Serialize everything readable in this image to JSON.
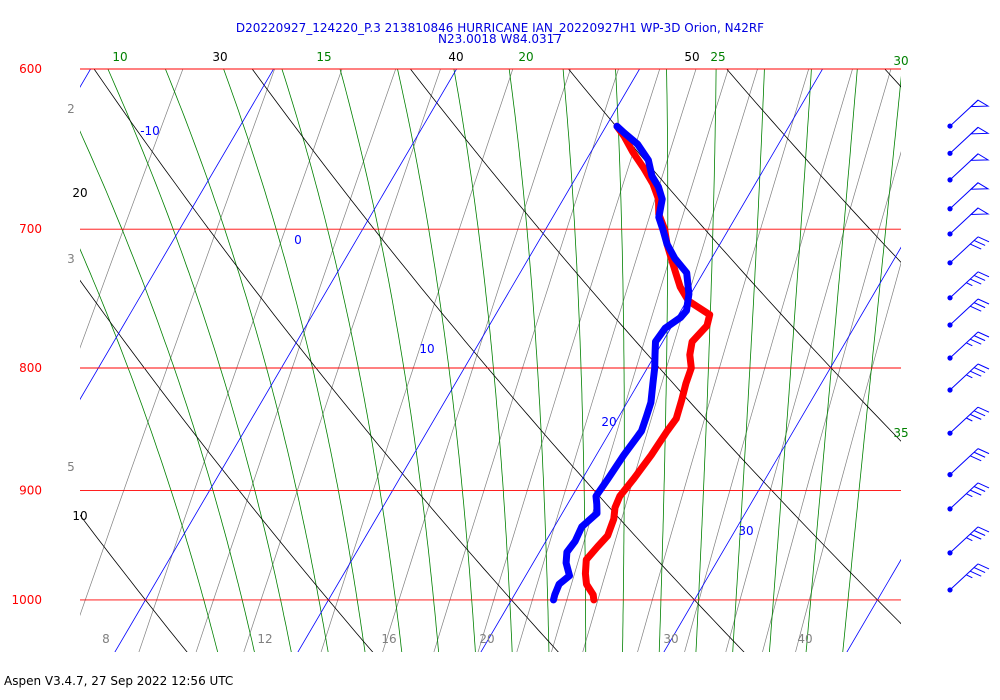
{
  "title": {
    "line1": "D20220927_124220_P.3 213810846 HURRICANE IAN_20220927H1 WP-3D Orion, N42RF",
    "line2": "N23.0018 W84.0317"
  },
  "footer": "Aspen V3.4.7, 27 Sep 2022  12:56 UTC",
  "colors": {
    "isobar": "#ff0000",
    "isotherm": "#0000ff",
    "dry_adiabat": "#000000",
    "moist_adiabat": "#008000",
    "mixing_ratio": "#808080",
    "temperature": "#ff0000",
    "dewpoint": "#0000ff",
    "wind": "#0000ff"
  },
  "chart_data": {
    "type": "skew-t log-p sounding",
    "pressure_labels": [
      "600",
      "700",
      "800",
      "900",
      "1000"
    ],
    "isotherm_labels": [
      "-10",
      "0",
      "10",
      "20",
      "30"
    ],
    "dry_adiabat_labels_top": [
      "30",
      "40",
      "50"
    ],
    "dry_adiabat_labels_left": [
      "20",
      "10"
    ],
    "moist_adiabat_labels": [
      "10",
      "15",
      "20",
      "25",
      "30",
      "35"
    ],
    "mixing_ratio_labels_left": [
      "2",
      "3",
      "5"
    ],
    "mixing_ratio_labels_bottom": [
      "8",
      "12",
      "16",
      "20",
      "30",
      "40"
    ],
    "temperature_profile": {
      "pressure_hPa": [
        1000,
        995,
        985,
        975,
        962,
        950,
        940,
        925,
        915,
        905,
        890,
        870,
        850,
        840,
        825,
        812,
        800,
        790,
        780,
        768,
        760,
        750,
        740,
        730,
        720,
        710,
        700,
        690,
        680,
        670,
        660,
        650,
        640,
        634
      ],
      "temperature_C": [
        24.5,
        24.3,
        23.6,
        23.2,
        22.8,
        23.0,
        23.2,
        23.0,
        22.7,
        22.6,
        22.8,
        23.0,
        23.1,
        23.2,
        22.9,
        22.6,
        22.4,
        21.9,
        21.6,
        21.9,
        21.7,
        20.1,
        19.2,
        18.5,
        17.8,
        17.1,
        16.5,
        15.7,
        15.2,
        14.4,
        13.4,
        12.3,
        11.3,
        10.6
      ]
    },
    "dewpoint_profile": {
      "pressure_hPa": [
        1000,
        995,
        985,
        977,
        965,
        955,
        945,
        932,
        920,
        912,
        905,
        890,
        870,
        850,
        838,
        827,
        812,
        800,
        790,
        780,
        770,
        762,
        757,
        745,
        730,
        720,
        710,
        700,
        692,
        680,
        672,
        665,
        655,
        645,
        638,
        634
      ],
      "dewpoint_C": [
        22.3,
        22.2,
        22.1,
        22.4,
        21.8,
        21.5,
        21.6,
        21.5,
        21.9,
        21.6,
        21.3,
        21.4,
        21.5,
        21.7,
        21.5,
        21.3,
        20.8,
        20.4,
        20.0,
        19.6,
        19.7,
        20.2,
        20.3,
        19.9,
        19.1,
        18.0,
        17.1,
        16.4,
        15.8,
        15.4,
        14.8,
        14.1,
        13.4,
        12.3,
        11.2,
        10.6
      ]
    },
    "wind_barbs": [
      {
        "pressure_hPa": 1000,
        "speed_kt": 35
      },
      {
        "pressure_hPa": 965,
        "speed_kt": 35
      },
      {
        "pressure_hPa": 925,
        "speed_kt": 35
      },
      {
        "pressure_hPa": 895,
        "speed_kt": 30
      },
      {
        "pressure_hPa": 860,
        "speed_kt": 35
      },
      {
        "pressure_hPa": 825,
        "speed_kt": 35
      },
      {
        "pressure_hPa": 800,
        "speed_kt": 35
      },
      {
        "pressure_hPa": 775,
        "speed_kt": 30
      },
      {
        "pressure_hPa": 755,
        "speed_kt": 35
      },
      {
        "pressure_hPa": 730,
        "speed_kt": 30
      },
      {
        "pressure_hPa": 710,
        "speed_kt": 50
      },
      {
        "pressure_hPa": 693,
        "speed_kt": 50
      },
      {
        "pressure_hPa": 674,
        "speed_kt": 50
      },
      {
        "pressure_hPa": 657,
        "speed_kt": 50
      },
      {
        "pressure_hPa": 640,
        "speed_kt": 50
      }
    ],
    "pressure_range_hPa": [
      600,
      1050
    ],
    "grid": true
  }
}
